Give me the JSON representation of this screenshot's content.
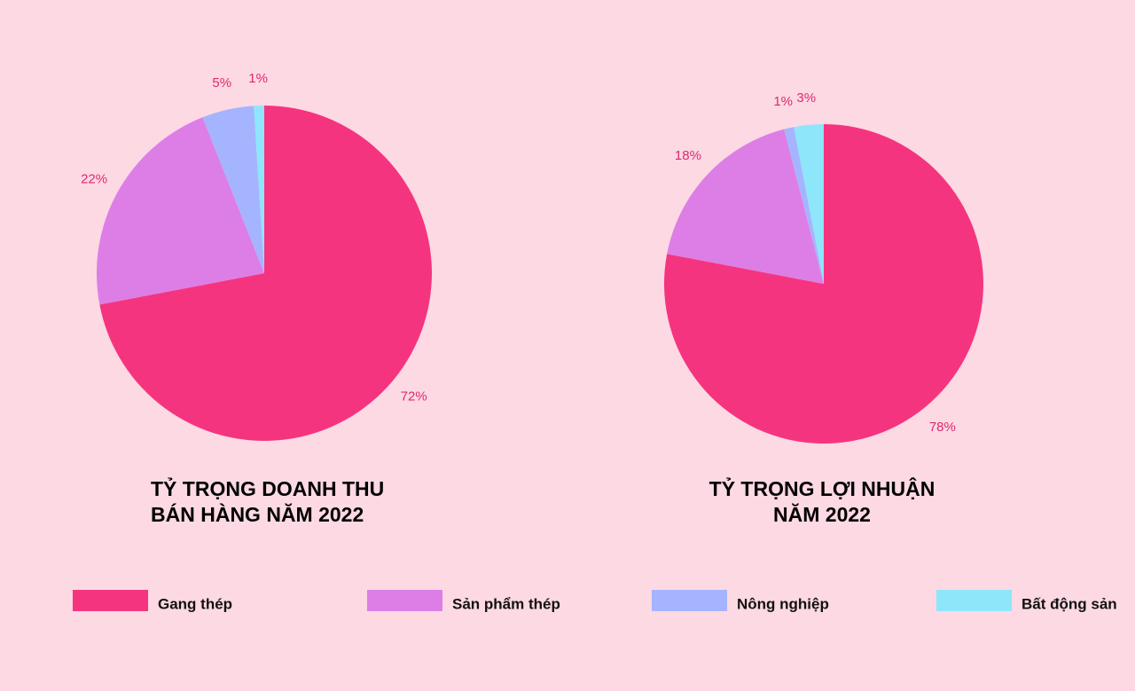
{
  "chart_data": [
    {
      "type": "pie",
      "title": [
        "TỶ TRỌNG DOANH THU",
        "BÁN HÀNG NĂM 2022"
      ],
      "values": [
        72,
        22,
        5,
        1
      ],
      "value_labels": [
        "72%",
        "22%",
        "5%",
        "1%"
      ]
    },
    {
      "type": "pie",
      "title": [
        "TỶ TRỌNG LỢI NHUẬN",
        "NĂM 2022"
      ],
      "values": [
        78,
        18,
        1,
        3
      ],
      "value_labels": [
        "78%",
        "18%",
        "1%",
        "3%"
      ]
    }
  ],
  "legend": {
    "labels": [
      "Gang thép",
      "Sản phẩm thép",
      "Nông nghiệp",
      "Bất động sản"
    ],
    "colors": [
      "#f5347f",
      "#dd7ee6",
      "#a5b4fe",
      "#8ee6fb"
    ]
  }
}
